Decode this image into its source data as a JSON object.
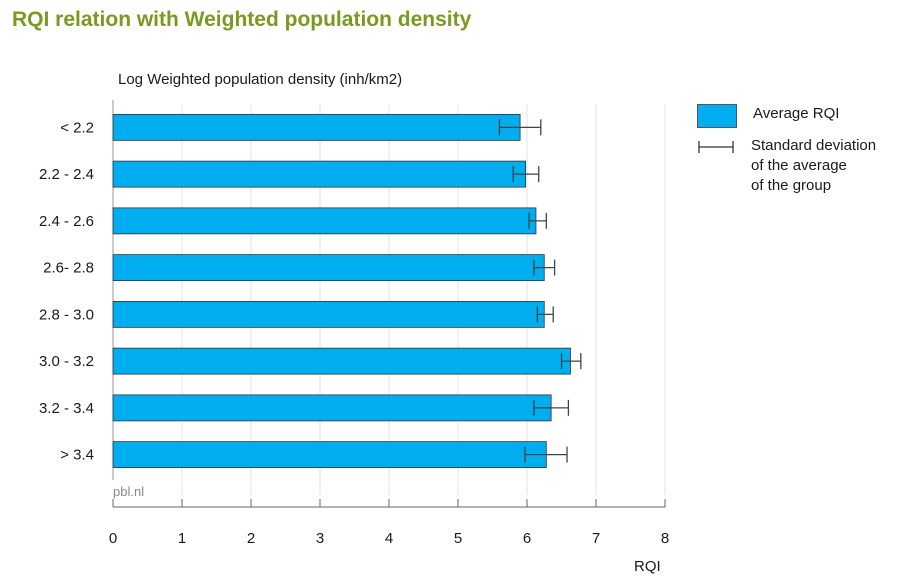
{
  "title": "RQI relation with Weighted population density",
  "source": "pbl.nl",
  "chart_data": {
    "type": "bar",
    "orientation": "horizontal",
    "title": "RQI relation with Weighted population density",
    "ylabel": "Log Weighted population density  (inh/km2)",
    "xlabel": "RQI",
    "categories": [
      "< 2.2",
      "2.2 - 2.4",
      "2.4 - 2.6",
      "2.6- 2.8",
      "2.8 - 3.0",
      "3.0 - 3.2",
      "3.2 - 3.4",
      "> 3.4"
    ],
    "series": [
      {
        "name": "Average RQI",
        "color": "#00aeef",
        "values": [
          5.9,
          5.98,
          6.13,
          6.25,
          6.25,
          6.63,
          6.35,
          6.28
        ],
        "error_low": [
          5.6,
          5.8,
          6.03,
          6.1,
          6.15,
          6.5,
          6.1,
          5.97
        ],
        "error_high": [
          6.2,
          6.17,
          6.28,
          6.4,
          6.38,
          6.78,
          6.6,
          6.58
        ]
      }
    ],
    "xlim": [
      0,
      8
    ],
    "xticks": [
      "0",
      "1",
      "2",
      "3",
      "4",
      "5",
      "6",
      "7",
      "8"
    ],
    "grid": true,
    "legend_placement": "right",
    "legend": [
      {
        "label": "Average RQI",
        "kind": "bar"
      },
      {
        "label": "Standard deviation of the average of the group",
        "lines": [
          "Standard deviation",
          "of the average",
          "of the group"
        ],
        "kind": "errorbar"
      }
    ]
  }
}
